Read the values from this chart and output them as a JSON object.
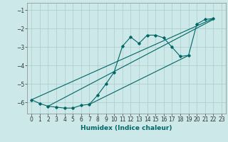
{
  "xlabel": "Humidex (Indice chaleur)",
  "ylabel": "",
  "xlim": [
    -0.5,
    23.5
  ],
  "ylim": [
    -6.6,
    -0.6
  ],
  "yticks": [
    -6,
    -5,
    -4,
    -3,
    -2,
    -1
  ],
  "xticks": [
    0,
    1,
    2,
    3,
    4,
    5,
    6,
    7,
    8,
    9,
    10,
    11,
    12,
    13,
    14,
    15,
    16,
    17,
    18,
    19,
    20,
    21,
    22,
    23
  ],
  "bg_color": "#cce8e8",
  "line_color": "#006666",
  "grid_color": "#aacccc",
  "line1_x": [
    0,
    1,
    2,
    3,
    4,
    5,
    6,
    7,
    8,
    9,
    10,
    11,
    12,
    13,
    14,
    15,
    16,
    17,
    18,
    19,
    20,
    21,
    22
  ],
  "line1_y": [
    -5.85,
    -6.05,
    -6.2,
    -6.25,
    -6.3,
    -6.3,
    -6.15,
    -6.1,
    -5.6,
    -5.0,
    -4.35,
    -2.95,
    -2.45,
    -2.8,
    -2.35,
    -2.35,
    -2.5,
    -3.0,
    -3.5,
    -3.45,
    -1.75,
    -1.5,
    -1.45
  ],
  "line2_x": [
    0,
    22
  ],
  "line2_y": [
    -5.85,
    -1.45
  ],
  "line3_x": [
    2,
    22
  ],
  "line3_y": [
    -6.2,
    -1.5
  ],
  "line4_x": [
    7,
    19
  ],
  "line4_y": [
    -6.1,
    -3.45
  ]
}
